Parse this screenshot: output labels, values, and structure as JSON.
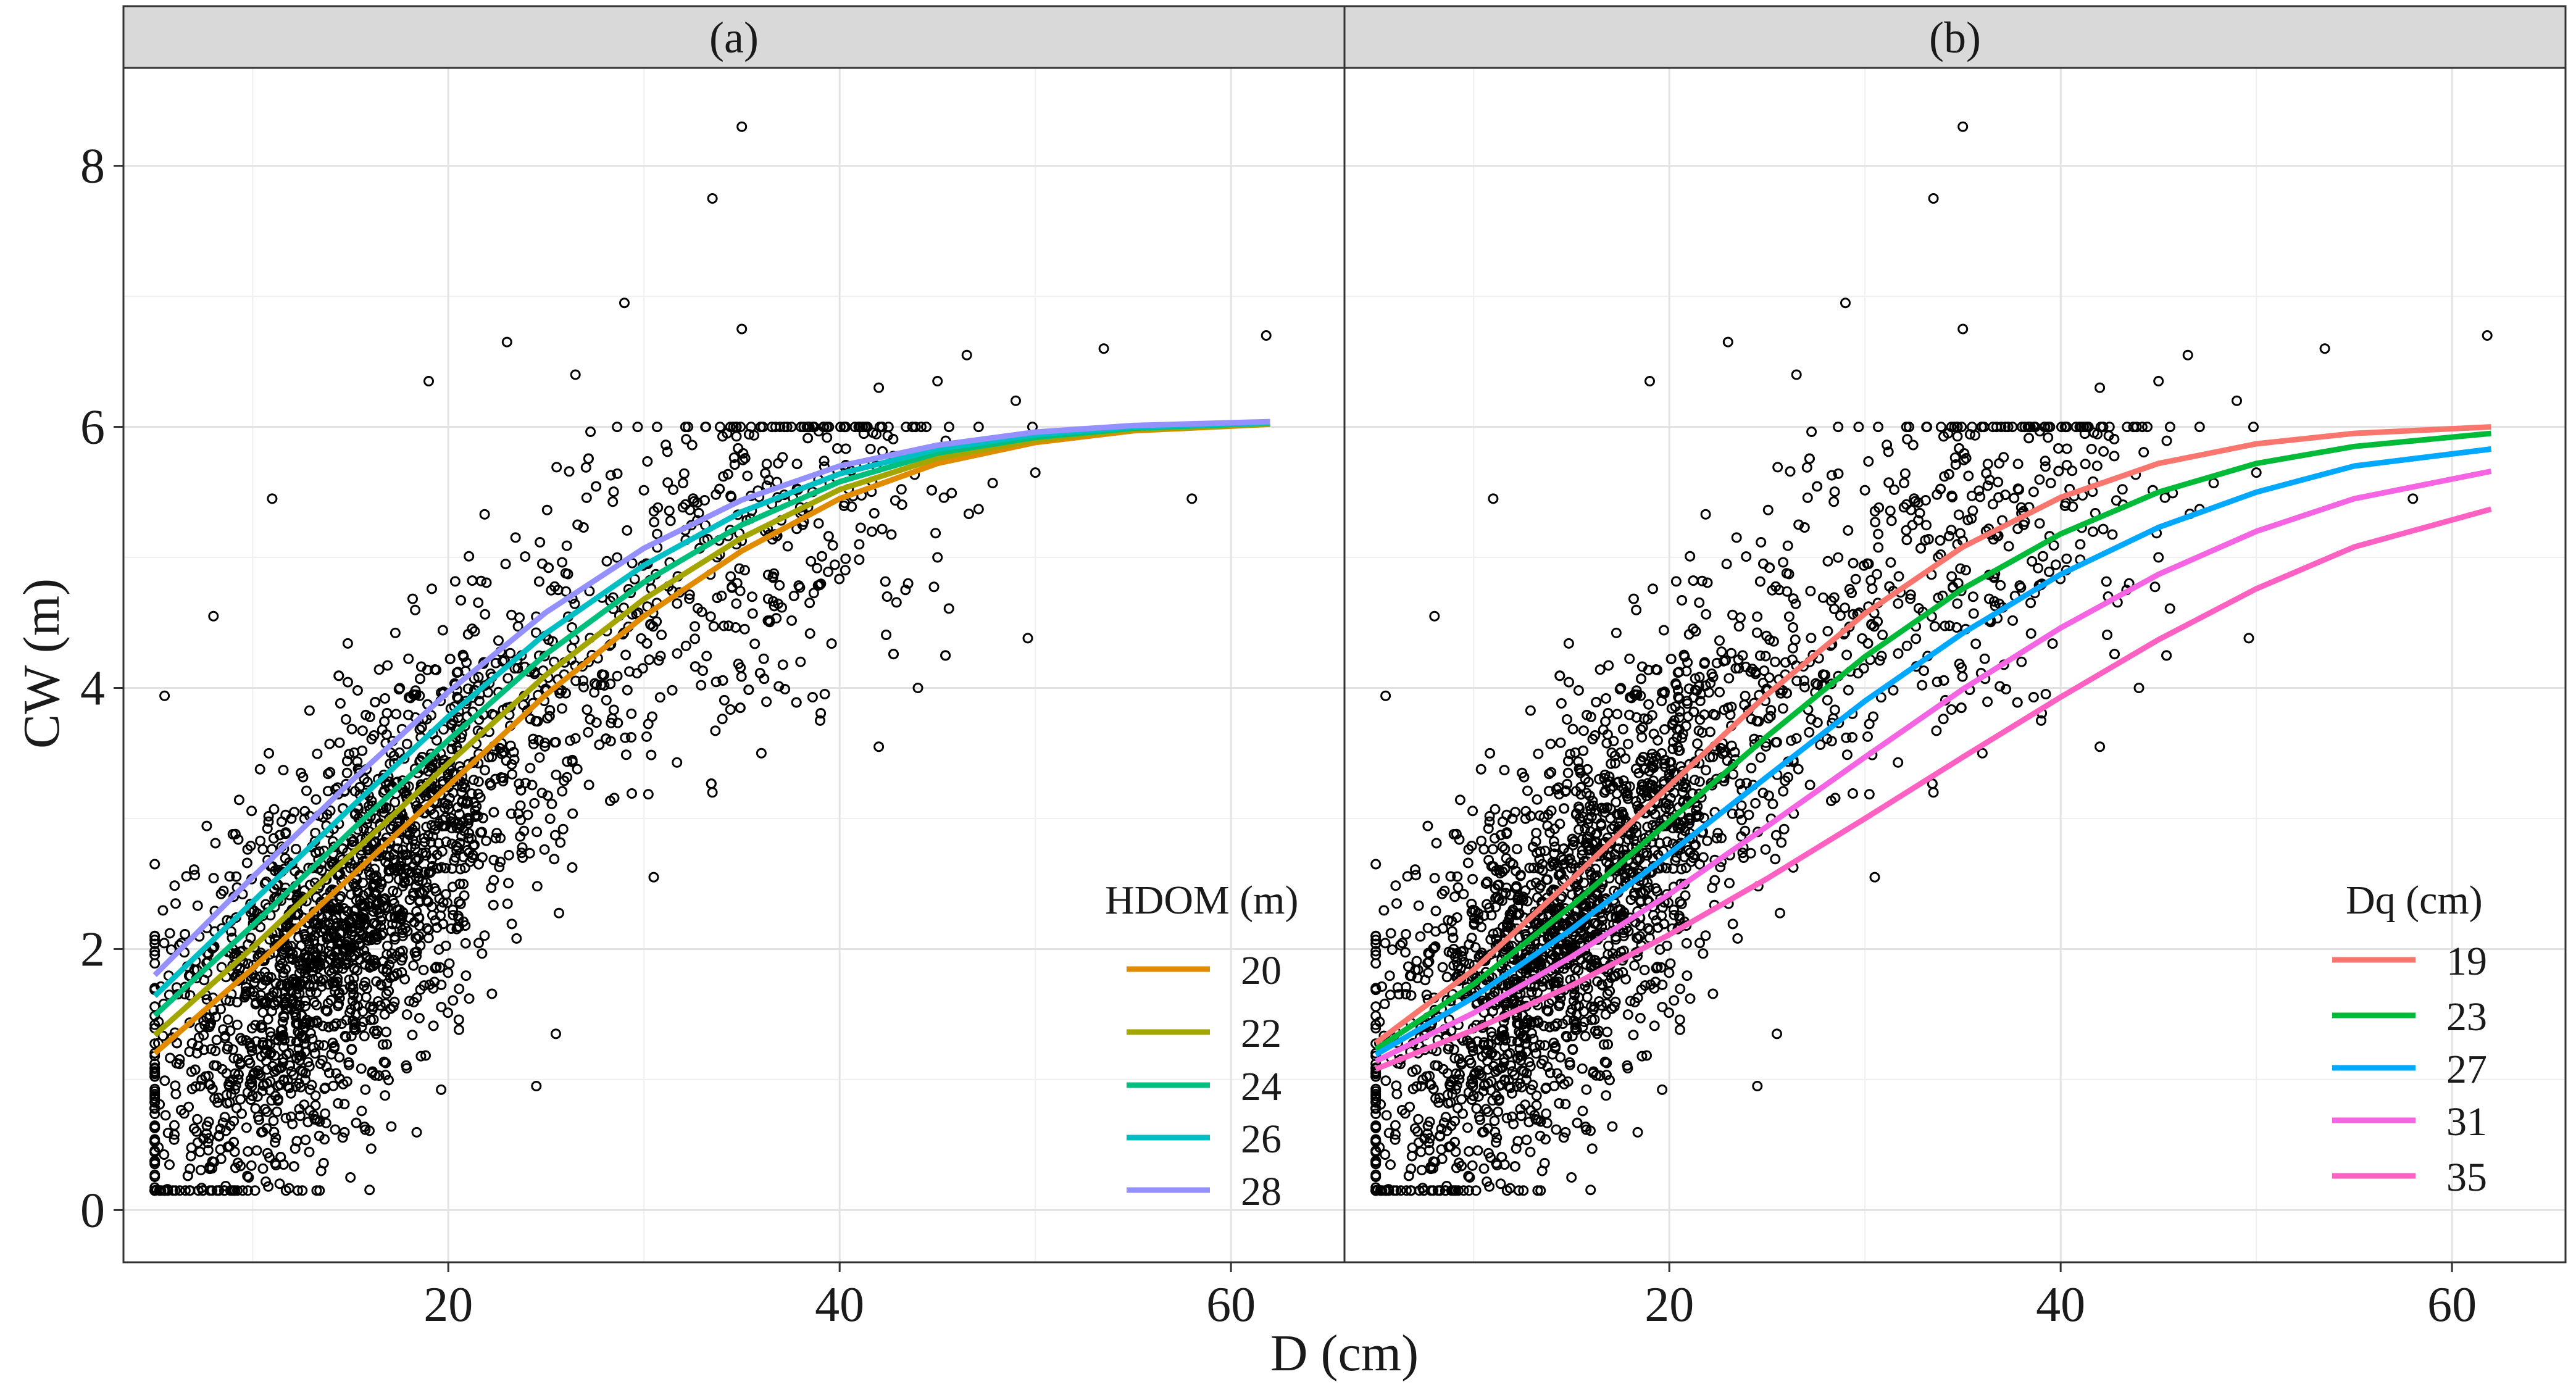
{
  "chart_data": {
    "type": "scatter",
    "xlabel": "D (cm)",
    "ylabel": "CW (m)",
    "xlim": [
      3.4,
      65.8
    ],
    "ylim": [
      -0.4,
      8.75
    ],
    "x_ticks": [
      20,
      40,
      60
    ],
    "y_ticks": [
      0,
      2,
      4,
      6
    ],
    "y_tick_labels": [
      "0",
      "2",
      "4",
      "6",
      "8"
    ],
    "y_ticks_all": [
      0,
      2,
      4,
      6,
      8
    ],
    "grid": true,
    "observations_note": "Shared scatter of observed tree crown width vs. diameter, same points in both panels",
    "scatter_anchors": [
      [
        5,
        2.65
      ],
      [
        5.5,
        3.94
      ],
      [
        6.5,
        0.74
      ],
      [
        9.8,
        0.25
      ],
      [
        10.8,
        0.18
      ],
      [
        13.5,
        0.3
      ],
      [
        15,
        0.25
      ],
      [
        11,
        5.45
      ],
      [
        8,
        4.55
      ],
      [
        19,
        6.35
      ],
      [
        23,
        6.65
      ],
      [
        26.5,
        6.4
      ],
      [
        29,
        6.95
      ],
      [
        33.5,
        7.75
      ],
      [
        35,
        8.3
      ],
      [
        35,
        6.75
      ],
      [
        42,
        6.3
      ],
      [
        45,
        6.35
      ],
      [
        46.5,
        6.55
      ],
      [
        49,
        6.2
      ],
      [
        53.5,
        6.6
      ],
      [
        58,
        5.45
      ],
      [
        61.8,
        6.7
      ],
      [
        50,
        5.65
      ],
      [
        42,
        3.55
      ],
      [
        44,
        4.0
      ],
      [
        33.5,
        3.2
      ],
      [
        30.5,
        2.55
      ],
      [
        25.5,
        1.35
      ],
      [
        24.5,
        0.95
      ],
      [
        41,
        5.1
      ],
      [
        43.5,
        4.8
      ],
      [
        39,
        3.75
      ],
      [
        36,
        3.5
      ],
      [
        38,
        4.2
      ],
      [
        45,
        5.0
      ]
    ],
    "panels": [
      {
        "label": "(a)",
        "legend_title": "HDOM (m)",
        "series": [
          {
            "name": "20",
            "color": "#E08B00",
            "x": [
              5,
              10,
              15,
              20,
              25,
              30,
              35,
              40,
              45,
              50,
              55,
              62
            ],
            "y": [
              1.2,
              1.85,
              2.55,
              3.25,
              3.95,
              4.55,
              5.05,
              5.45,
              5.72,
              5.88,
              5.97,
              6.02
            ]
          },
          {
            "name": "22",
            "color": "#A3A500",
            "x": [
              5,
              10,
              15,
              20,
              25,
              30,
              35,
              40,
              45,
              50,
              55,
              62
            ],
            "y": [
              1.34,
              2.01,
              2.72,
              3.42,
              4.1,
              4.68,
              5.15,
              5.52,
              5.76,
              5.9,
              5.98,
              6.02
            ]
          },
          {
            "name": "24",
            "color": "#00BF7D",
            "x": [
              5,
              10,
              15,
              20,
              25,
              30,
              35,
              40,
              45,
              50,
              55,
              62
            ],
            "y": [
              1.49,
              2.18,
              2.9,
              3.6,
              4.26,
              4.81,
              5.25,
              5.58,
              5.8,
              5.92,
              5.99,
              6.03
            ]
          },
          {
            "name": "26",
            "color": "#00BFC4",
            "x": [
              5,
              10,
              15,
              20,
              25,
              30,
              35,
              40,
              45,
              50,
              55,
              62
            ],
            "y": [
              1.64,
              2.36,
              3.08,
              3.78,
              4.42,
              4.94,
              5.35,
              5.64,
              5.83,
              5.94,
              6.0,
              6.03
            ]
          },
          {
            "name": "28",
            "color": "#9590FF",
            "x": [
              5,
              10,
              15,
              20,
              25,
              30,
              35,
              40,
              45,
              50,
              55,
              62
            ],
            "y": [
              1.8,
              2.55,
              3.28,
              3.97,
              4.58,
              5.07,
              5.44,
              5.7,
              5.86,
              5.96,
              6.01,
              6.04
            ]
          }
        ]
      },
      {
        "label": "(b)",
        "legend_title": "Dq (cm)",
        "series": [
          {
            "name": "19",
            "color": "#F8766D",
            "x": [
              5,
              10,
              15,
              20,
              25,
              30,
              35,
              40,
              45,
              50,
              55,
              62
            ],
            "y": [
              1.28,
              1.84,
              2.53,
              3.25,
              3.95,
              4.57,
              5.08,
              5.46,
              5.72,
              5.87,
              5.95,
              6.0
            ]
          },
          {
            "name": "23",
            "color": "#00BA38",
            "x": [
              5,
              10,
              15,
              20,
              25,
              30,
              35,
              40,
              45,
              50,
              55,
              62
            ],
            "y": [
              1.23,
              1.73,
              2.33,
              2.98,
              3.63,
              4.24,
              4.76,
              5.18,
              5.5,
              5.72,
              5.85,
              5.95
            ]
          },
          {
            "name": "27",
            "color": "#00A9FF",
            "x": [
              5,
              10,
              15,
              20,
              25,
              30,
              35,
              40,
              45,
              50,
              55,
              62
            ],
            "y": [
              1.19,
              1.63,
              2.15,
              2.73,
              3.32,
              3.9,
              4.42,
              4.87,
              5.23,
              5.5,
              5.7,
              5.83
            ]
          },
          {
            "name": "31",
            "color": "#F564E3",
            "x": [
              5,
              10,
              15,
              20,
              25,
              30,
              35,
              40,
              45,
              50,
              55,
              62
            ],
            "y": [
              1.14,
              1.51,
              1.94,
              2.42,
              2.94,
              3.47,
              3.99,
              4.46,
              4.87,
              5.2,
              5.45,
              5.66
            ]
          },
          {
            "name": "35",
            "color": "#FF61C3",
            "x": [
              5,
              10,
              15,
              20,
              25,
              30,
              35,
              40,
              45,
              50,
              55,
              62
            ],
            "y": [
              1.08,
              1.38,
              1.72,
              2.11,
              2.54,
              3.0,
              3.47,
              3.93,
              4.37,
              4.76,
              5.08,
              5.37
            ]
          }
        ]
      }
    ]
  }
}
